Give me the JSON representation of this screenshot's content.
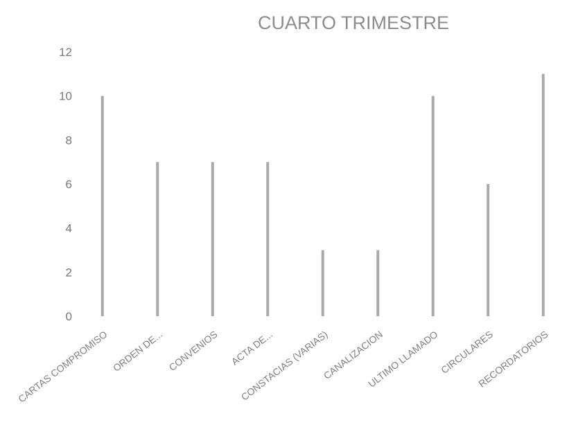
{
  "chart_data": {
    "type": "bar",
    "title": "CUARTO TRIMESTRE",
    "xlabel": "",
    "ylabel": "",
    "ylim": [
      0,
      12
    ],
    "yticks": [
      "0",
      "2",
      "4",
      "6",
      "8",
      "10",
      "12"
    ],
    "grid": false,
    "legend": "none",
    "bar_color": "#a9a9a9",
    "categories": [
      "CARTAS COMPROMISO",
      "ORDEN DE...",
      "CONVENIOS",
      "ACTA DE...",
      "CONSTACIAS (VARIAS)",
      "CANALIZACION",
      "ULTIMO LLAMADO",
      "CIRCULARES",
      "RECORDATORIOS"
    ],
    "values": [
      10,
      7,
      7,
      7,
      3,
      3,
      10,
      6,
      11
    ]
  }
}
